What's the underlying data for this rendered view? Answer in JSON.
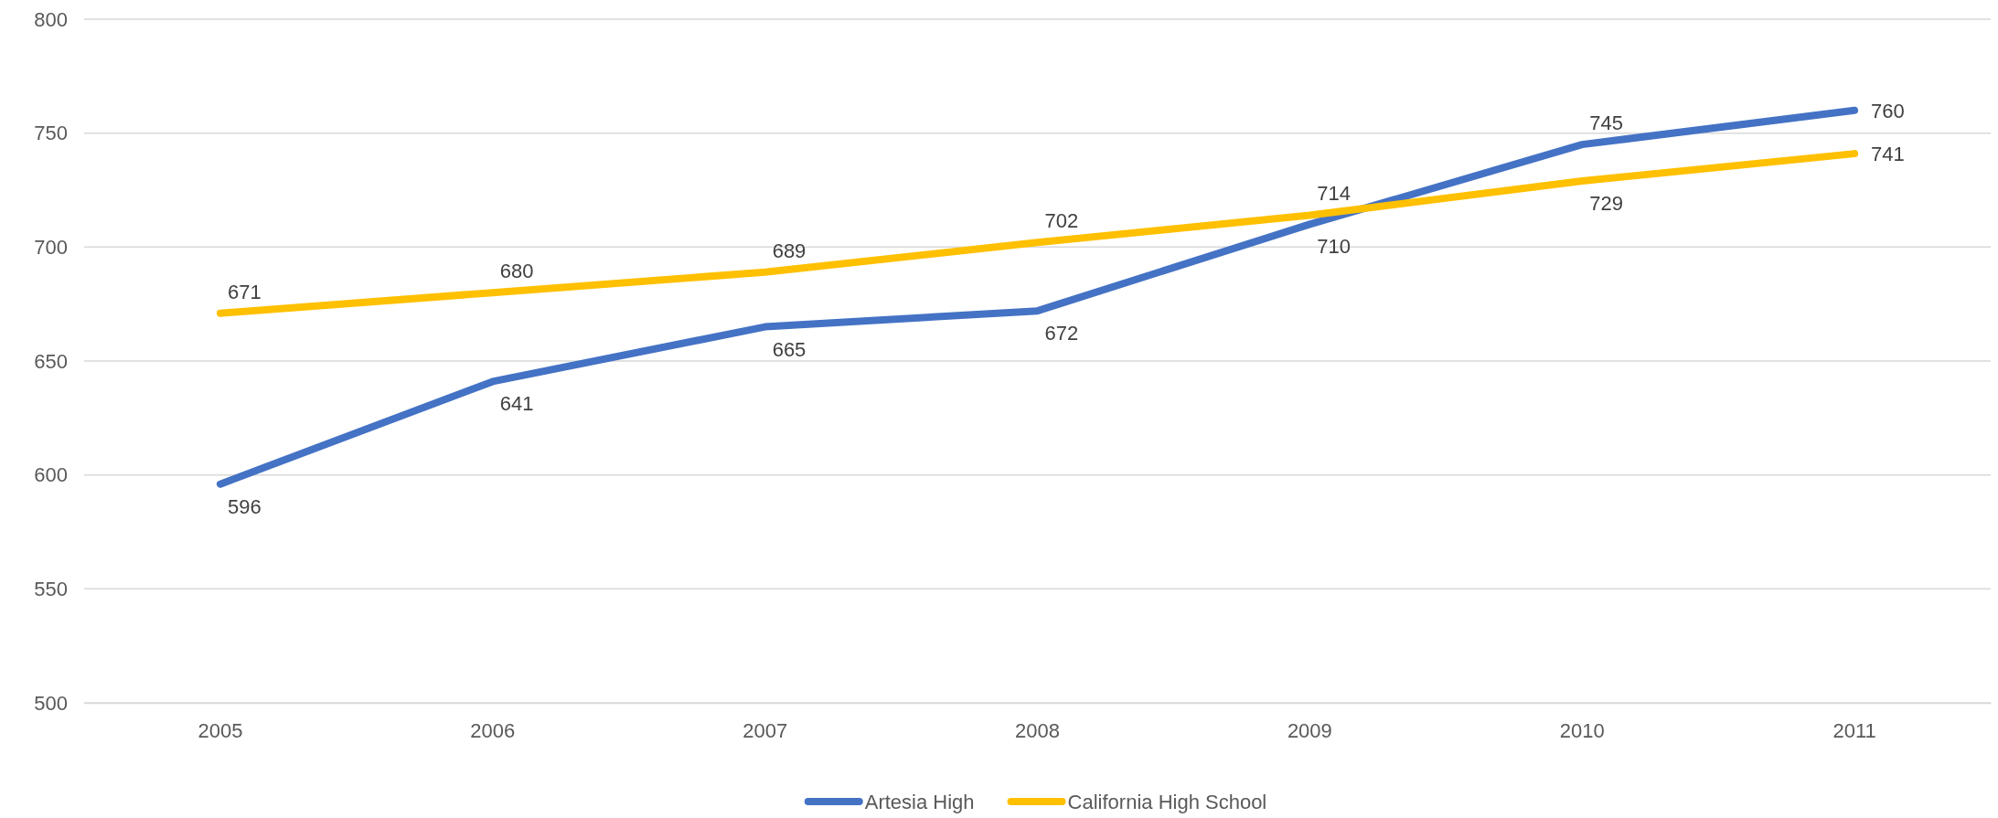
{
  "chart_data": {
    "type": "line",
    "categories": [
      "2005",
      "2006",
      "2007",
      "2008",
      "2009",
      "2010",
      "2011"
    ],
    "series": [
      {
        "name": "Artesia High",
        "color": "#4472c4",
        "values": [
          596,
          641,
          665,
          672,
          710,
          745,
          760
        ]
      },
      {
        "name": "California High School",
        "color": "#ffc000",
        "values": [
          671,
          680,
          689,
          702,
          714,
          729,
          741
        ]
      }
    ],
    "ylim": [
      500,
      800
    ],
    "yticks": [
      500,
      550,
      600,
      650,
      700,
      750,
      800
    ],
    "grid": "y",
    "legend": "bottom",
    "data_labels": true,
    "marker": "none",
    "line_style": "solid"
  }
}
